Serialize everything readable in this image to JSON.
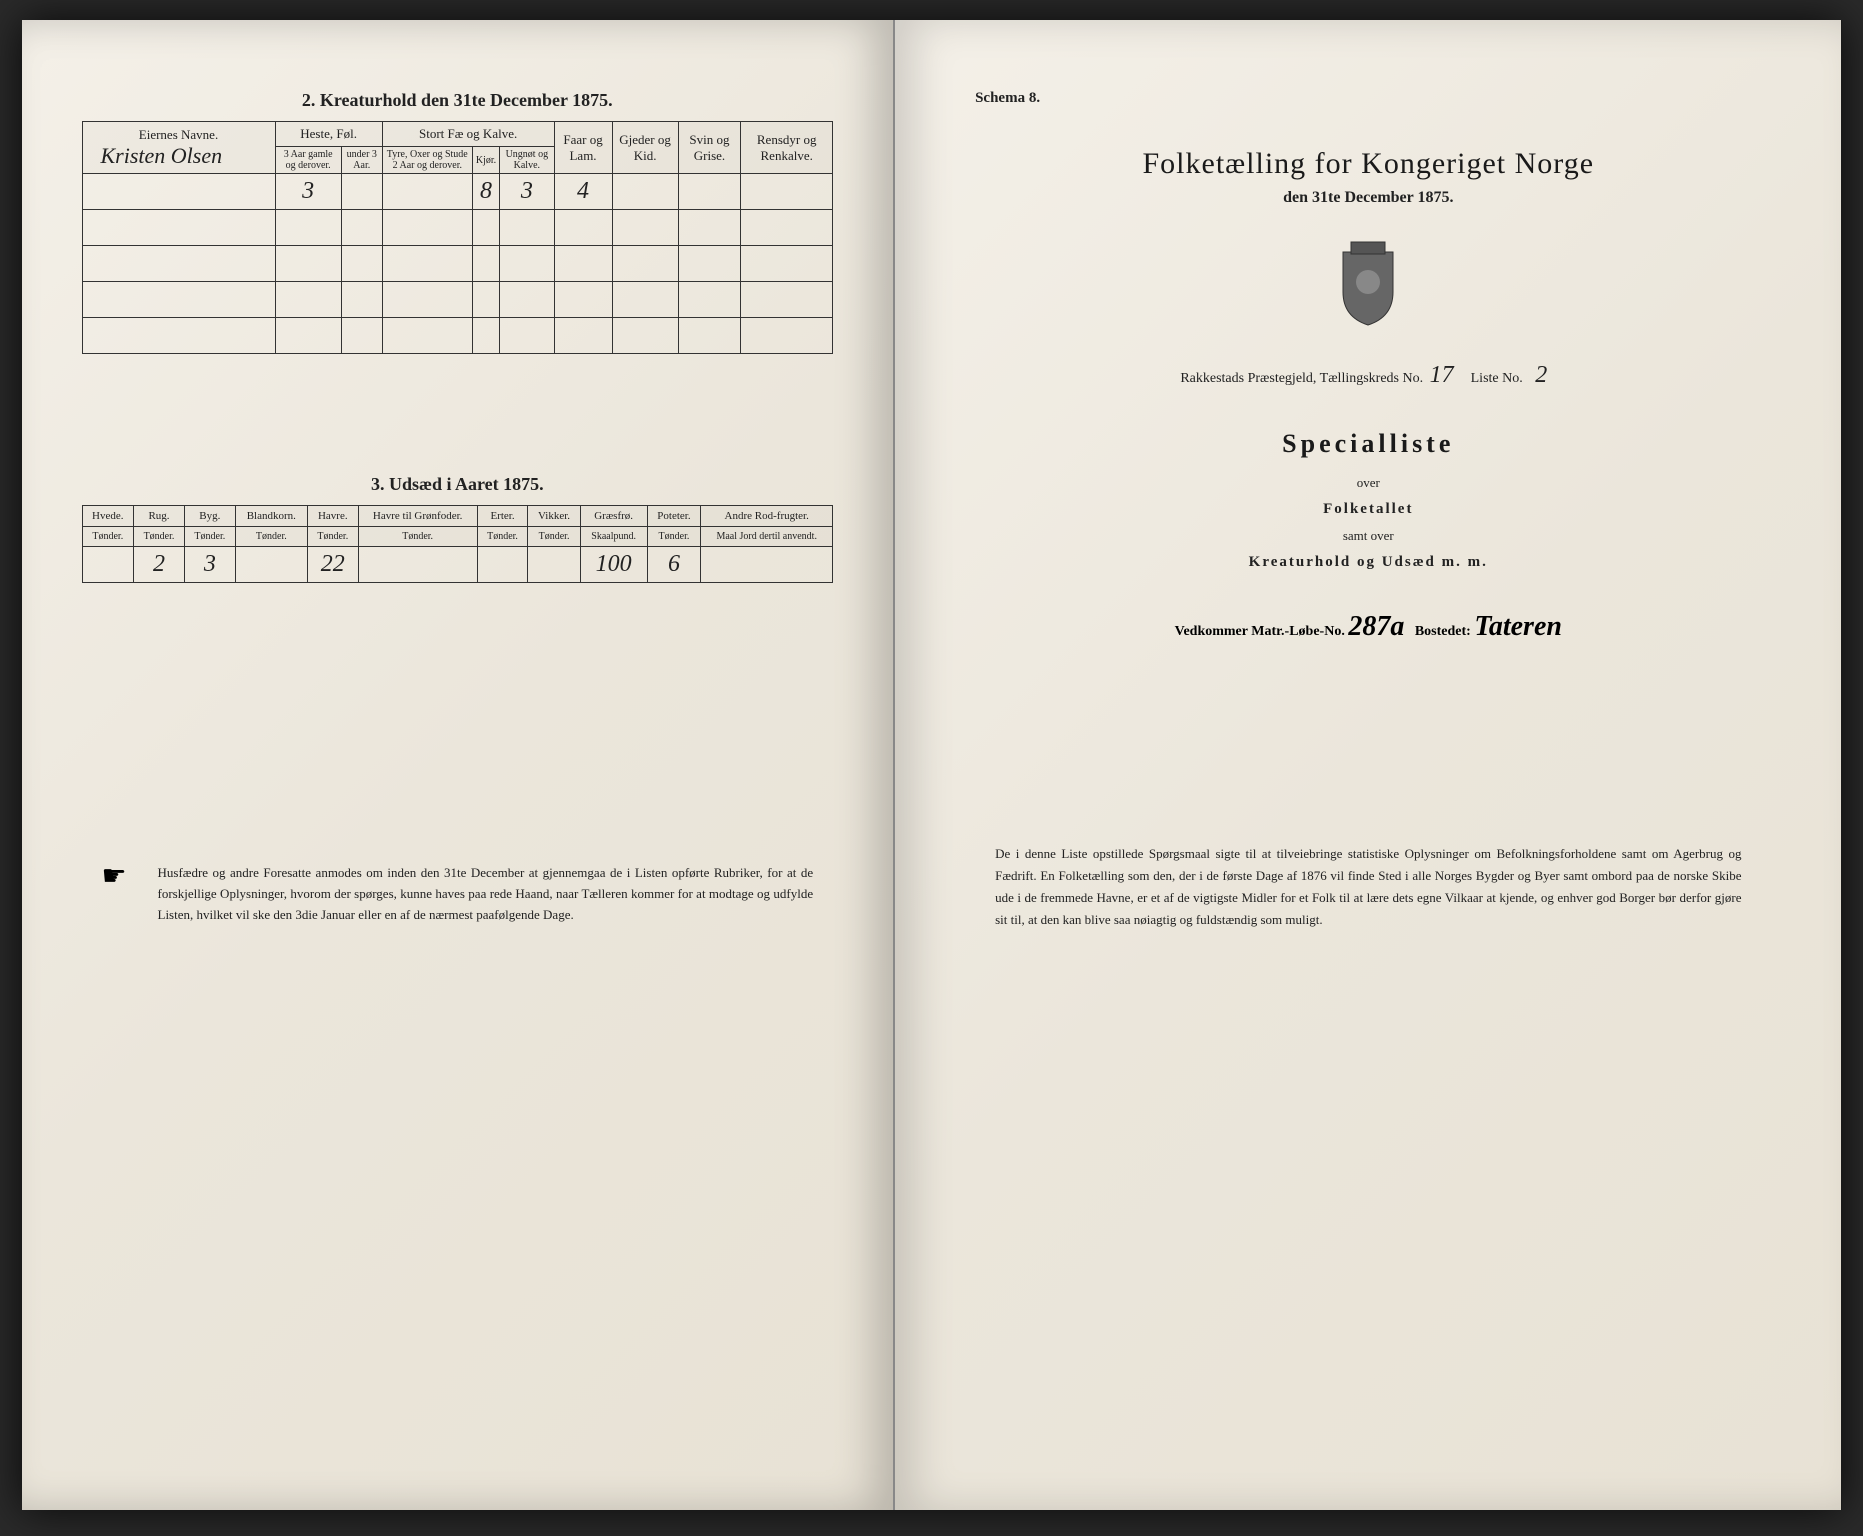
{
  "leftPage": {
    "table2": {
      "title": "2.  Kreaturhold den 31te December 1875.",
      "ownerHeader": "Eiernes Navne.",
      "ownerName": "Kristen Olsen",
      "groupHeaders": {
        "heste": "Heste, Føl.",
        "storfae": "Stort Fæ og Kalve.",
        "faar": "Faar og Lam.",
        "gjeder": "Gjeder og Kid.",
        "svin": "Svin og Grise.",
        "ren": "Rensdyr og Renkalve."
      },
      "subHeaders": {
        "h1": "3 Aar gamle og derover.",
        "h2": "under 3 Aar.",
        "s1": "Tyre, Oxer og Stude 2 Aar og derover.",
        "s2": "Kjør.",
        "s3": "Ungnøt og Kalve."
      },
      "row": {
        "h1": "3",
        "h2": "",
        "s1": "",
        "s2": "8",
        "s3": "3",
        "faar": "4",
        "gjeder": "",
        "svin": "",
        "ren": ""
      }
    },
    "table3": {
      "title": "3.  Udsæd i Aaret 1875.",
      "headers": [
        "Hvede.",
        "Rug.",
        "Byg.",
        "Blandkorn.",
        "Havre.",
        "Havre til Grønfoder.",
        "Erter.",
        "Vikker.",
        "Græsfrø.",
        "Poteter.",
        "Andre Rod-frugter."
      ],
      "units": [
        "Tønder.",
        "Tønder.",
        "Tønder.",
        "Tønder.",
        "Tønder.",
        "Tønder.",
        "Tønder.",
        "Tønder.",
        "Skaalpund.",
        "Tønder.",
        "Maal Jord dertil anvendt."
      ],
      "row": [
        "",
        "2",
        "3",
        "",
        "22",
        "",
        "",
        "",
        "100",
        "6",
        ""
      ]
    },
    "footnote": "Husfædre og andre Foresatte anmodes om inden den 31te December at gjennemgaa de i Listen opførte Rubriker, for at de forskjellige Oplysninger, hvorom der spørges, kunne haves paa rede Haand, naar Tælleren kommer for at modtage og udfylde Listen, hvilket vil ske den 3die Januar eller en af de nærmest paafølgende Dage."
  },
  "rightPage": {
    "schema": "Schema 8.",
    "title": "Folketælling for Kongeriget Norge",
    "subtitle": "den 31te December 1875.",
    "district": {
      "prefix": "Rakkestads Præstegjeld, Tællingskreds No.",
      "kredsNo": "17",
      "listeLabel": "Liste No.",
      "listeNo": "2"
    },
    "spec": {
      "title": "Specialliste",
      "over": "over",
      "folketallet": "Folketallet",
      "samt": "samt over",
      "kreatur": "Kreaturhold og Udsæd m. m."
    },
    "lobe": {
      "prefix": "Vedkommer Matr.-Løbe-No.",
      "no": "287a",
      "bostedLabel": "Bostedet:",
      "bosted": "Tateren"
    },
    "footnote": "De i denne Liste opstillede Spørgsmaal sigte til at tilveiebringe statistiske Oplysninger om Befolkningsforholdene samt om Agerbrug og Fædrift. En Folketælling som den, der i de første Dage af 1876 vil finde Sted i alle Norges Bygder og Byer samt ombord paa de norske Skibe ude i de fremmede Havne, er et af de vigtigste Midler for et Folk til at lære dets egne Vilkaar at kjende, og enhver god Borger bør derfor gjøre sit til, at den kan blive saa nøiagtig og fuldstændig som muligt."
  }
}
